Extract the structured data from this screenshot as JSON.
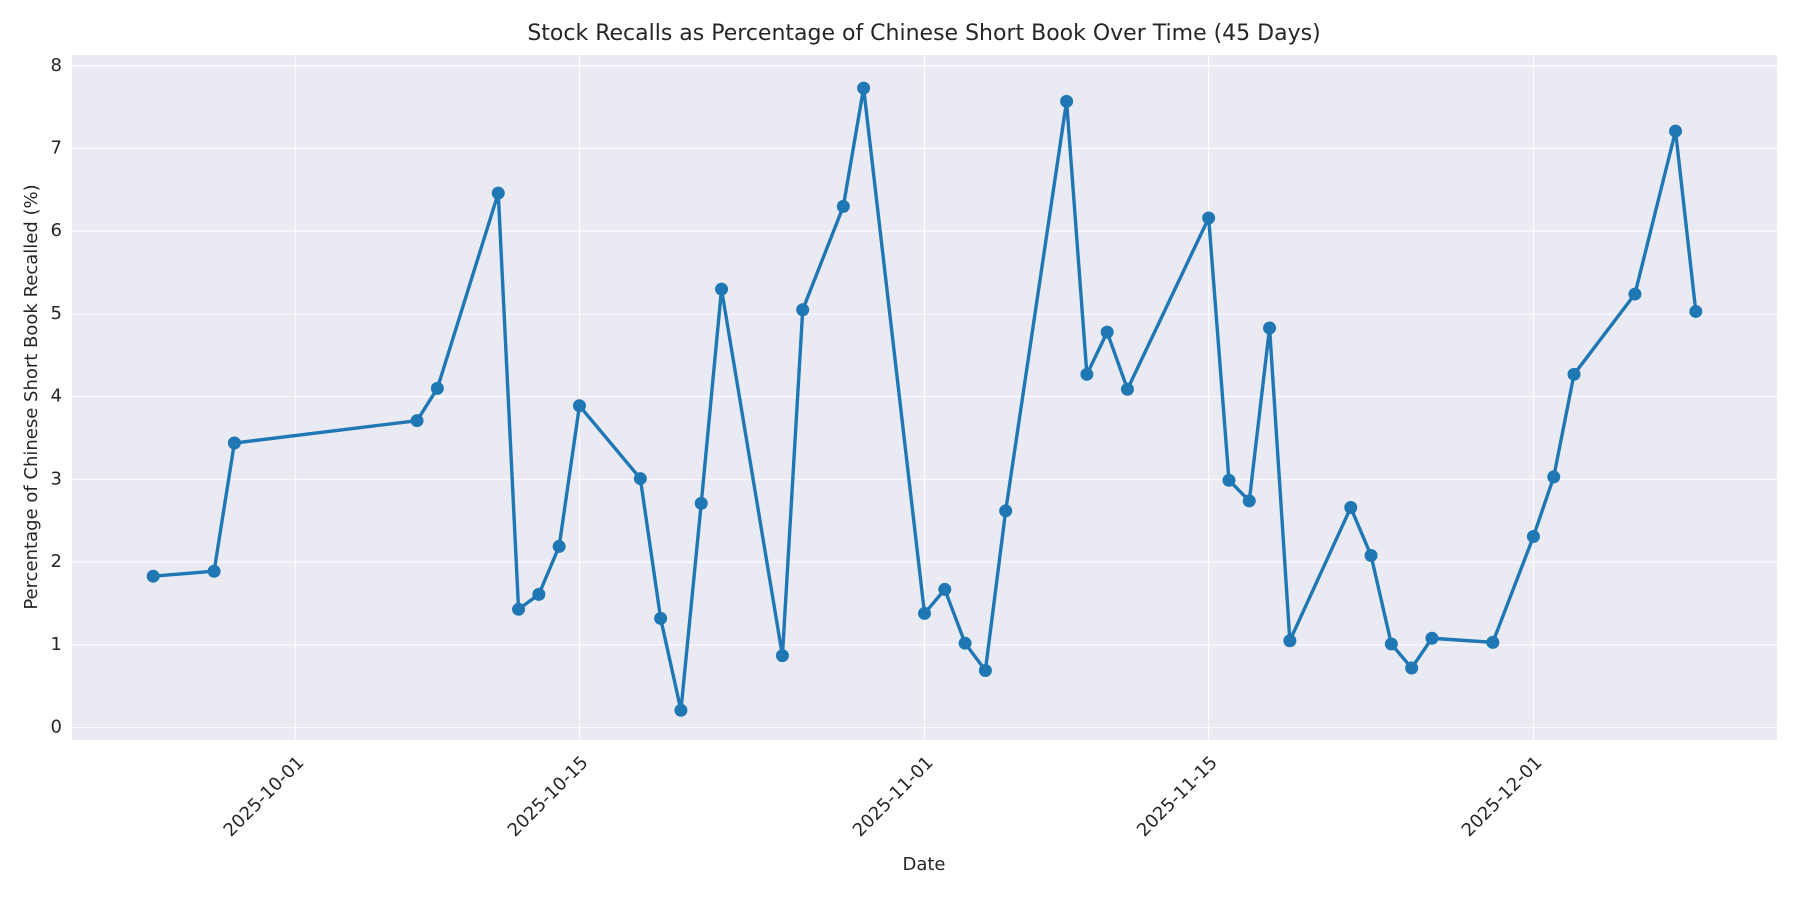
{
  "chart_data": {
    "type": "line",
    "title": "Stock Recalls as Percentage of Chinese Short Book Over Time (45 Days)",
    "xlabel": "Date",
    "ylabel": "Percentage of Chinese Short Book Recalled (%)",
    "x": [
      "2025-09-24",
      "2025-09-27",
      "2025-09-28",
      "2025-10-07",
      "2025-10-08",
      "2025-10-11",
      "2025-10-12",
      "2025-10-13",
      "2025-10-14",
      "2025-10-15",
      "2025-10-18",
      "2025-10-19",
      "2025-10-20",
      "2025-10-21",
      "2025-10-22",
      "2025-10-25",
      "2025-10-26",
      "2025-10-28",
      "2025-10-29",
      "2025-11-01",
      "2025-11-02",
      "2025-11-03",
      "2025-11-04",
      "2025-11-05",
      "2025-11-08",
      "2025-11-09",
      "2025-11-10",
      "2025-11-11",
      "2025-11-15",
      "2025-11-16",
      "2025-11-17",
      "2025-11-18",
      "2025-11-19",
      "2025-11-22",
      "2025-11-23",
      "2025-11-24",
      "2025-11-25",
      "2025-11-26",
      "2025-11-29",
      "2025-12-01",
      "2025-12-02",
      "2025-12-03",
      "2025-12-06",
      "2025-12-08",
      "2025-12-09"
    ],
    "values": [
      1.83,
      1.89,
      3.44,
      3.71,
      4.1,
      6.46,
      1.43,
      1.61,
      2.19,
      3.89,
      3.01,
      1.32,
      0.21,
      2.71,
      5.3,
      0.87,
      5.05,
      6.3,
      7.73,
      1.38,
      1.67,
      1.02,
      0.69,
      2.62,
      7.57,
      4.27,
      4.78,
      4.09,
      6.16,
      2.99,
      2.74,
      4.83,
      1.05,
      2.66,
      2.08,
      1.01,
      0.72,
      1.08,
      1.03,
      2.31,
      3.03,
      4.27,
      5.24,
      7.21,
      5.03
    ],
    "color": "#1f77b4",
    "xlim": [
      "2025-09-20",
      "2025-12-13"
    ],
    "xticks": [
      "2025-10-01",
      "2025-10-15",
      "2025-11-01",
      "2025-11-15",
      "2025-12-01"
    ],
    "ylim": [
      -0.15,
      8.13
    ],
    "yticks": [
      0,
      1,
      2,
      3,
      4,
      5,
      6,
      7,
      8
    ],
    "grid": true
  }
}
